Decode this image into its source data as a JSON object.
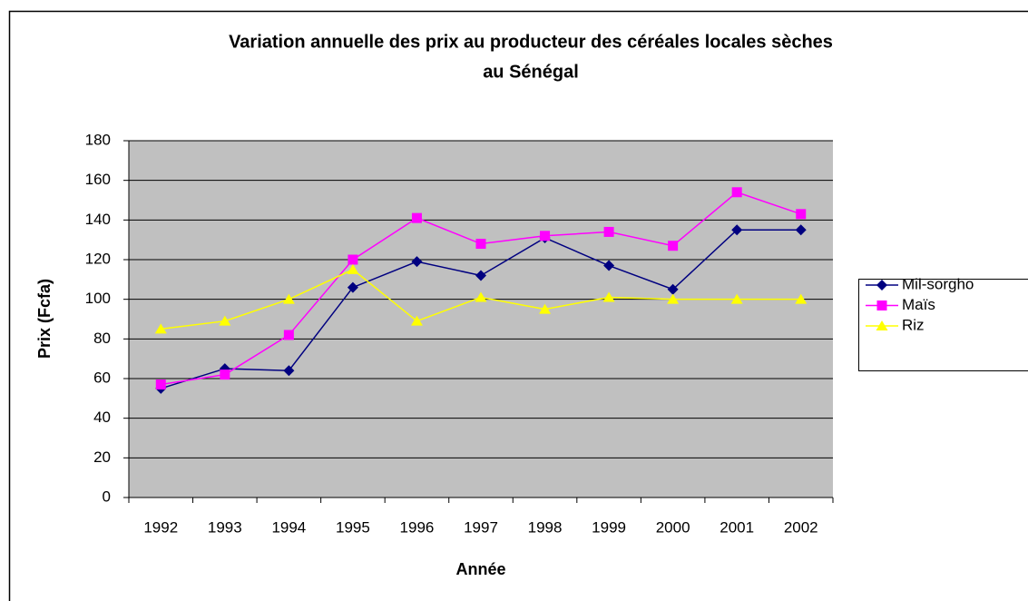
{
  "chart_data": {
    "type": "line",
    "title": [
      "Variation annuelle des prix au producteur des céréales locales sèches",
      "au Sénégal"
    ],
    "x_label": "Année",
    "y_label": "Prix (Fcfa)",
    "categories": [
      "1992",
      "1993",
      "1994",
      "1995",
      "1996",
      "1997",
      "1998",
      "1999",
      "2000",
      "2001",
      "2002"
    ],
    "series": [
      {
        "name": "Mil-sorgho",
        "color": "#000080",
        "marker": "diamond",
        "values": [
          55,
          65,
          64,
          106,
          119,
          112,
          131,
          117,
          105,
          135,
          135
        ]
      },
      {
        "name": "Maïs",
        "color": "#ff00ff",
        "marker": "square",
        "values": [
          57,
          62,
          82,
          120,
          141,
          128,
          132,
          134,
          127,
          154,
          143
        ]
      },
      {
        "name": "Riz",
        "color": "#ffff00",
        "marker": "triangle",
        "values": [
          85,
          89,
          100,
          115,
          89,
          101,
          95,
          101,
          100,
          100,
          100
        ]
      }
    ],
    "ylim": [
      0,
      180
    ],
    "yticks": [
      0,
      20,
      40,
      60,
      80,
      100,
      120,
      140,
      160,
      180
    ],
    "grid": true,
    "plot_background": "#c0c0c0",
    "legend": "right"
  }
}
